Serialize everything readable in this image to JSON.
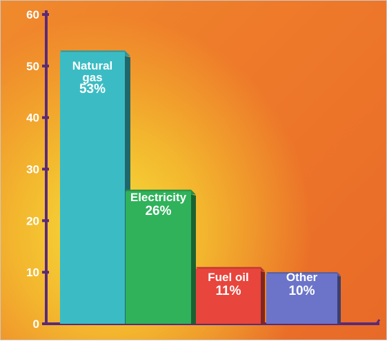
{
  "chart_data": {
    "type": "bar",
    "categories": [
      "Natural gas",
      "Electricity",
      "Fuel oil",
      "Other"
    ],
    "values": [
      53,
      26,
      11,
      10
    ],
    "value_labels": [
      "53%",
      "26%",
      "11%",
      "10%"
    ],
    "bar_label_lines": [
      [
        "Natural",
        "gas",
        "53%"
      ],
      [
        "Electricity",
        "26%"
      ],
      [
        "Fuel oil",
        "11%"
      ],
      [
        "Other",
        "10%"
      ]
    ],
    "y_ticks": [
      "0",
      "10",
      "20",
      "30",
      "40",
      "50",
      "60"
    ],
    "ylim": [
      0,
      60
    ],
    "grid": false,
    "legend": "none",
    "title": "",
    "xlabel": "",
    "ylabel": "",
    "colors": {
      "bars": [
        "#3bbcc4",
        "#2fb25a",
        "#e8453c",
        "#6b74c9"
      ],
      "axis": "#5a2a78",
      "text": "#ffffff"
    }
  }
}
